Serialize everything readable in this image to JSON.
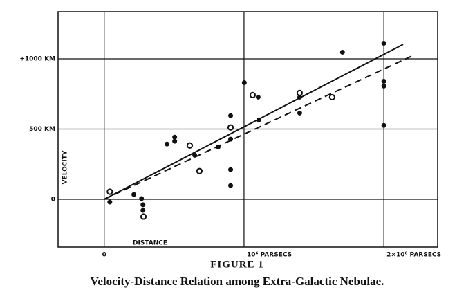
{
  "chart_data": {
    "type": "scatter",
    "figure_label": "FIGURE 1",
    "title": "Velocity-Distance Relation among Extra-Galactic Nebulae.",
    "x_label": "DISTANCE",
    "y_label": "VELOCITY",
    "xlim": [
      -330000,
      2385000
    ],
    "ylim": [
      -340,
      1335
    ],
    "xticks": [
      0,
      {
        "value": 1000000,
        "label": "10⁶ PARSECS"
      },
      {
        "value": 2000000,
        "label": "2×10⁶ PARSECS"
      }
    ],
    "yticks": [
      0,
      {
        "value": 500,
        "label": "500 KM"
      },
      {
        "value": 1000,
        "label": "+1000 KM"
      }
    ],
    "grid": true,
    "color": "#111111",
    "series": [
      {
        "marker": "filled",
        "x": [
          40000,
          212000,
          267000,
          277000,
          277000,
          449000,
          504000,
          504000,
          647000,
          815000,
          904000,
          904000,
          904000,
          904000,
          1002000,
          1101000,
          1106000,
          1398000,
          1398000,
          1704000,
          2000000,
          2000000,
          2000000,
          2000000
        ],
        "values": [
          -20,
          34,
          5,
          -39,
          -79,
          393,
          413,
          442,
          314,
          373,
          595,
          428,
          211,
          98,
          830,
          727,
          565,
          614,
          727,
          1047,
          1111,
          840,
          806,
          526
        ]
      },
      {
        "marker": "open",
        "x": [
          40000,
          281000,
          612000,
          681000,
          904000,
          1062000,
          1398000,
          1630000
        ],
        "values": [
          54,
          -123,
          383,
          201,
          511,
          742,
          757,
          727
        ]
      },
      {
        "line": "solid",
        "x": [
          0,
          2138000
        ],
        "values": [
          0,
          1103
        ]
      },
      {
        "line": "dashed",
        "x": [
          0,
          2212000
        ],
        "values": [
          0,
          1025
        ]
      }
    ]
  }
}
